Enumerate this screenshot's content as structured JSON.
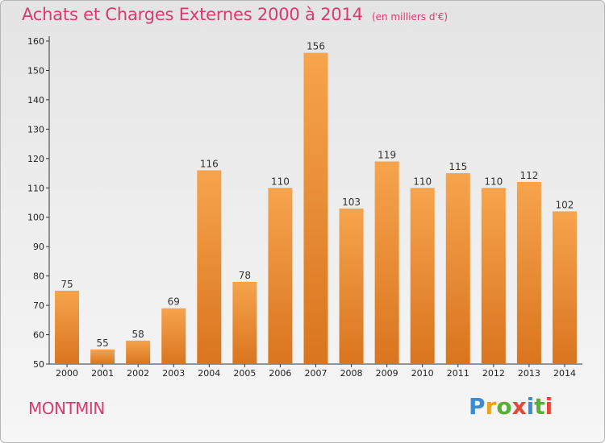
{
  "chart_data": {
    "type": "bar",
    "title": "Achats et Charges Externes 2000 à 2014",
    "subtitle": "(en milliers d'€)",
    "categories": [
      "2000",
      "2001",
      "2002",
      "2003",
      "2004",
      "2005",
      "2006",
      "2007",
      "2008",
      "2009",
      "2010",
      "2011",
      "2012",
      "2013",
      "2014"
    ],
    "values": [
      75,
      55,
      58,
      69,
      116,
      78,
      110,
      156,
      103,
      119,
      110,
      115,
      110,
      112,
      102
    ],
    "xlabel": "",
    "ylabel": "",
    "ylim": [
      50,
      160
    ],
    "yticks": [
      50,
      60,
      70,
      80,
      90,
      100,
      110,
      120,
      130,
      140,
      150,
      160
    ],
    "grid": false,
    "legend": "none"
  },
  "commune": "MONTMIN",
  "logo": {
    "letters": [
      "P",
      "r",
      "o",
      "x",
      "i",
      "t",
      "i"
    ],
    "colors": [
      "#3a8ed0",
      "#e8a21c",
      "#55b03a",
      "#e04a3c"
    ]
  },
  "colors": {
    "bar_top": "#f6a44d",
    "bar_bottom": "#d9751e",
    "accent": "#d63c6d"
  }
}
